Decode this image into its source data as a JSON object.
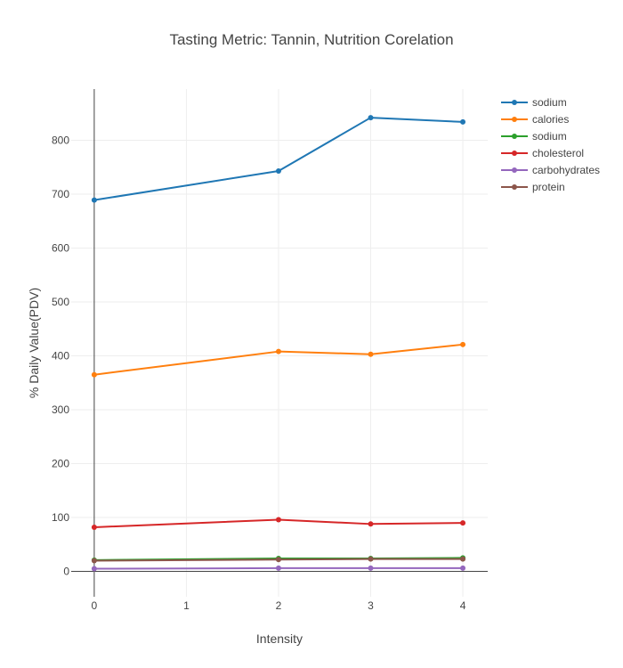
{
  "chart_data": {
    "type": "line",
    "title": "Tasting Metric: Tannin, Nutrition Corelation",
    "xlabel": "Intensity",
    "ylabel": "% Daily Value(PDV)",
    "x": [
      0,
      2,
      3,
      4
    ],
    "x_ticks": [
      0,
      1,
      2,
      3,
      4
    ],
    "y_ticks": [
      0,
      100,
      200,
      300,
      400,
      500,
      600,
      700,
      800
    ],
    "xlim": [
      -0.25,
      4.27
    ],
    "ylim": [
      -47,
      895
    ],
    "grid": true,
    "legend_position": "top-right",
    "series": [
      {
        "name": "sodium",
        "color": "#1f77b4",
        "values": [
          689,
          743,
          842,
          834
        ]
      },
      {
        "name": "calories",
        "color": "#ff7f0e",
        "values": [
          365,
          408,
          403,
          421
        ]
      },
      {
        "name": "sodium",
        "color": "#2ca02c",
        "values": [
          21,
          24,
          24,
          25
        ]
      },
      {
        "name": "cholesterol",
        "color": "#d62728",
        "values": [
          82,
          96,
          88,
          90
        ]
      },
      {
        "name": "carbohydrates",
        "color": "#9467bd",
        "values": [
          5,
          6,
          6,
          6
        ]
      },
      {
        "name": "protein",
        "color": "#8c564b",
        "values": [
          20,
          22,
          23,
          23
        ]
      }
    ]
  }
}
